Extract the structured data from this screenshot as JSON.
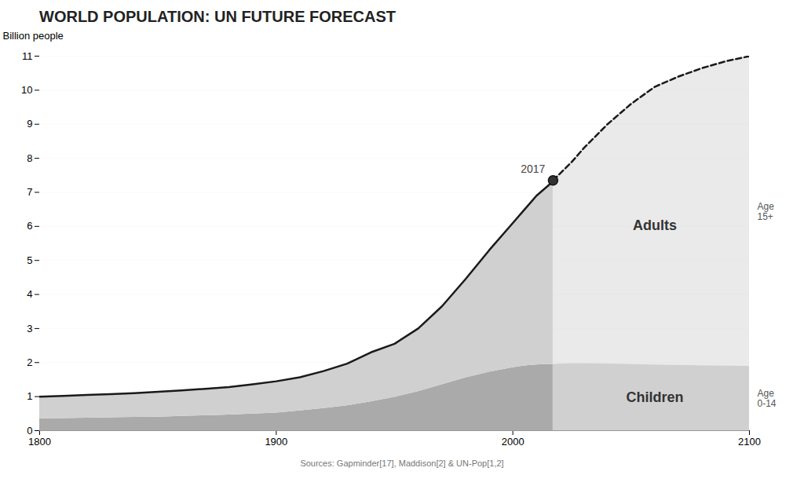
{
  "chart_data": {
    "type": "area",
    "title": "WORLD POPULATION: UN FUTURE FORECAST",
    "ylabel": "Billion people",
    "source": "Sources: Gapminder[17], Maddison[2] & UN-Pop[1,2]",
    "xlim": [
      1800,
      2100
    ],
    "ylim": [
      0,
      11
    ],
    "xticks": [
      1800,
      1900,
      2000,
      2100
    ],
    "yticks": [
      0,
      1,
      2,
      3,
      4,
      5,
      6,
      7,
      8,
      9,
      10,
      11
    ],
    "grid": true,
    "stacked": false,
    "series": [
      {
        "name": "Children",
        "sublabel": "Age\n0-14",
        "color": "#aaaaaa",
        "x": [
          1800,
          1810,
          1820,
          1830,
          1840,
          1850,
          1860,
          1870,
          1880,
          1890,
          1900,
          1910,
          1920,
          1930,
          1940,
          1950,
          1960,
          1970,
          1980,
          1990,
          2000,
          2005,
          2010,
          2015,
          2017
        ],
        "values": [
          0.35,
          0.36,
          0.37,
          0.38,
          0.39,
          0.4,
          0.42,
          0.44,
          0.46,
          0.49,
          0.52,
          0.58,
          0.65,
          0.73,
          0.85,
          0.98,
          1.15,
          1.35,
          1.55,
          1.72,
          1.85,
          1.9,
          1.93,
          1.95,
          1.95
        ],
        "forecast": {
          "color": "#b0b0b0",
          "x": [
            2017,
            2025,
            2030,
            2040,
            2050,
            2060,
            2070,
            2080,
            2090,
            2100
          ],
          "values": [
            1.95,
            1.97,
            1.97,
            1.96,
            1.95,
            1.93,
            1.92,
            1.91,
            1.9,
            1.89
          ]
        }
      },
      {
        "name": "Adults",
        "sublabel": "Age\n15+",
        "color": "#d0d0d0",
        "x": [
          1800,
          1810,
          1820,
          1830,
          1840,
          1850,
          1860,
          1870,
          1880,
          1890,
          1900,
          1910,
          1920,
          1930,
          1940,
          1950,
          1960,
          1970,
          1980,
          1990,
          2000,
          2005,
          2010,
          2015,
          2017
        ],
        "values": [
          1.0,
          1.02,
          1.05,
          1.07,
          1.1,
          1.14,
          1.18,
          1.23,
          1.28,
          1.36,
          1.45,
          1.57,
          1.75,
          1.97,
          2.3,
          2.55,
          3.0,
          3.65,
          4.45,
          5.3,
          6.1,
          6.5,
          6.9,
          7.2,
          7.35
        ],
        "forecast": {
          "color": "#d0d0d0",
          "x": [
            2017,
            2025,
            2030,
            2040,
            2050,
            2060,
            2070,
            2080,
            2090,
            2100
          ],
          "values": [
            7.35,
            7.9,
            8.3,
            9.0,
            9.6,
            10.1,
            10.4,
            10.65,
            10.85,
            11.0
          ]
        },
        "line": {
          "color": "#1a1a1a",
          "line_style": "solid",
          "forecast_line_style": "dashed"
        }
      }
    ],
    "annotations": [
      {
        "x": 2017,
        "y": 7.35,
        "text": "2017",
        "marker": "circle"
      }
    ]
  }
}
